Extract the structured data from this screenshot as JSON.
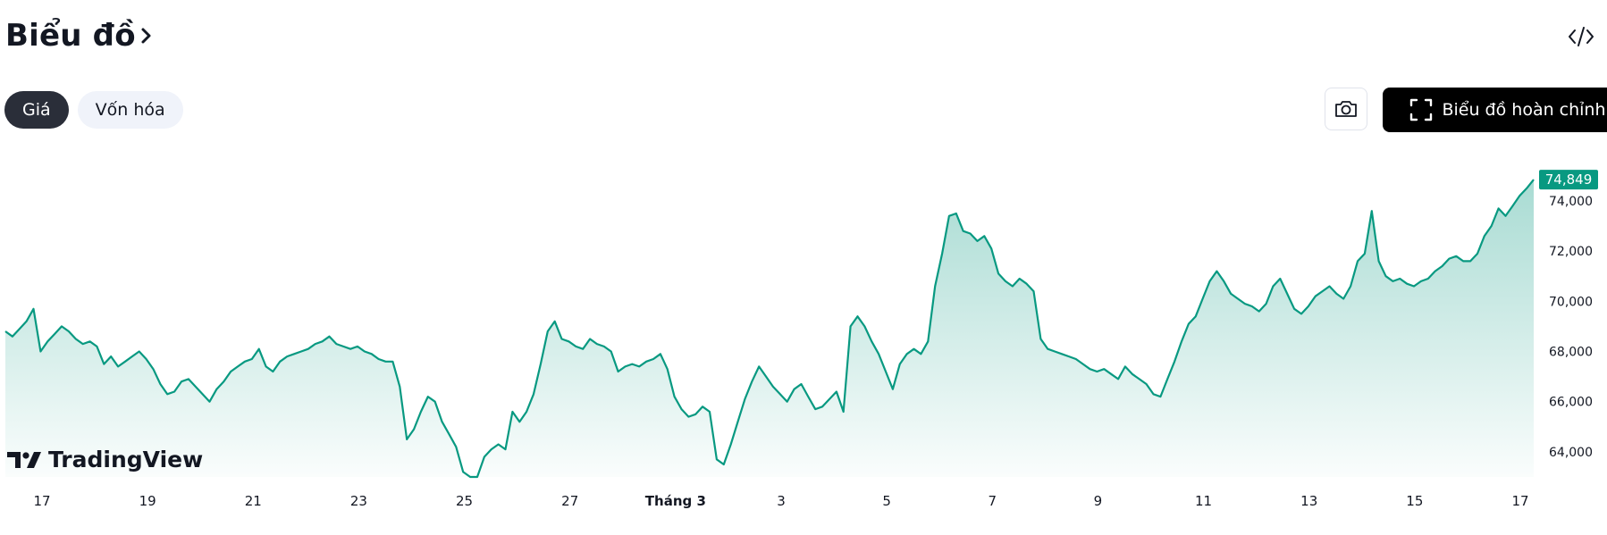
{
  "header": {
    "title": "Biểu đồ"
  },
  "tabs": [
    {
      "label": "Giá",
      "active": true
    },
    {
      "label": "Vốn hóa",
      "active": false
    }
  ],
  "toolbar": {
    "full_chart_label": "Biểu đồ hoàn chỉnh"
  },
  "branding": {
    "logo_text": "TradingView"
  },
  "colors": {
    "line": "#089981",
    "fill_top": "#089981",
    "price_tag": "#089981"
  },
  "icons": [
    "chevron-right-icon",
    "embed-code-icon",
    "camera-icon",
    "fullscreen-icon",
    "tradingview-logo-icon"
  ],
  "chart_data": {
    "type": "area",
    "x_tick_labels": [
      "17",
      "19",
      "21",
      "23",
      "25",
      "27",
      "Tháng 3",
      "3",
      "5",
      "7",
      "9",
      "11",
      "13",
      "15",
      "17"
    ],
    "y_tick_labels": [
      "64,000",
      "66,000",
      "68,000",
      "70,000",
      "72,000",
      "74,000"
    ],
    "ylim": [
      63000,
      75600
    ],
    "last_price_label": "74,849",
    "grid": false,
    "series": [
      {
        "values": [
          68800,
          68600,
          68900,
          69200,
          69700,
          68000,
          68400,
          68700,
          69000,
          68800,
          68500,
          68300,
          68400,
          68200,
          67500,
          67800,
          67400,
          67600,
          67800,
          68000,
          67700,
          67300,
          66700,
          66300,
          66400,
          66800,
          66900,
          66600,
          66300,
          66000,
          66500,
          66800,
          67200,
          67400,
          67600,
          67700,
          68100,
          67400,
          67200,
          67600,
          67800,
          67900,
          68000,
          68100,
          68300,
          68400,
          68600,
          68300,
          68200,
          68100,
          68200,
          68000,
          67900,
          67700,
          67600,
          67600,
          66600,
          64500,
          64900,
          65600,
          66200,
          66000,
          65200,
          64700,
          64200,
          63200,
          63000,
          63000,
          63800,
          64100,
          64300,
          64100,
          65600,
          65200,
          65600,
          66300,
          67500,
          68800,
          69200,
          68500,
          68400,
          68200,
          68100,
          68500,
          68300,
          68200,
          68000,
          67200,
          67400,
          67500,
          67400,
          67600,
          67700,
          67900,
          67300,
          66200,
          65700,
          65400,
          65500,
          65800,
          65600,
          63700,
          63500,
          64300,
          65200,
          66100,
          66800,
          67400,
          67000,
          66600,
          66300,
          66000,
          66500,
          66700,
          66200,
          65700,
          65800,
          66100,
          66400,
          65600,
          69000,
          69400,
          69000,
          68400,
          67900,
          67200,
          66500,
          67500,
          67900,
          68100,
          67900,
          68400,
          70600,
          71900,
          73400,
          73500,
          72800,
          72700,
          72400,
          72600,
          72100,
          71100,
          70800,
          70600,
          70900,
          70700,
          70400,
          68500,
          68100,
          68000,
          67900,
          67800,
          67700,
          67500,
          67300,
          67200,
          67300,
          67100,
          66900,
          67400,
          67100,
          66900,
          66700,
          66300,
          66200,
          66900,
          67600,
          68400,
          69100,
          69400,
          70100,
          70800,
          71200,
          70800,
          70300,
          70100,
          69900,
          69800,
          69600,
          69900,
          70600,
          70900,
          70300,
          69700,
          69500,
          69800,
          70200,
          70400,
          70600,
          70300,
          70100,
          70600,
          71600,
          71900,
          73600,
          71600,
          71000,
          70800,
          70900,
          70700,
          70600,
          70800,
          70900,
          71200,
          71400,
          71700,
          71800,
          71600,
          71600,
          71900,
          72600,
          73000,
          73700,
          73400,
          73800,
          74200,
          74500,
          74849
        ]
      }
    ]
  }
}
